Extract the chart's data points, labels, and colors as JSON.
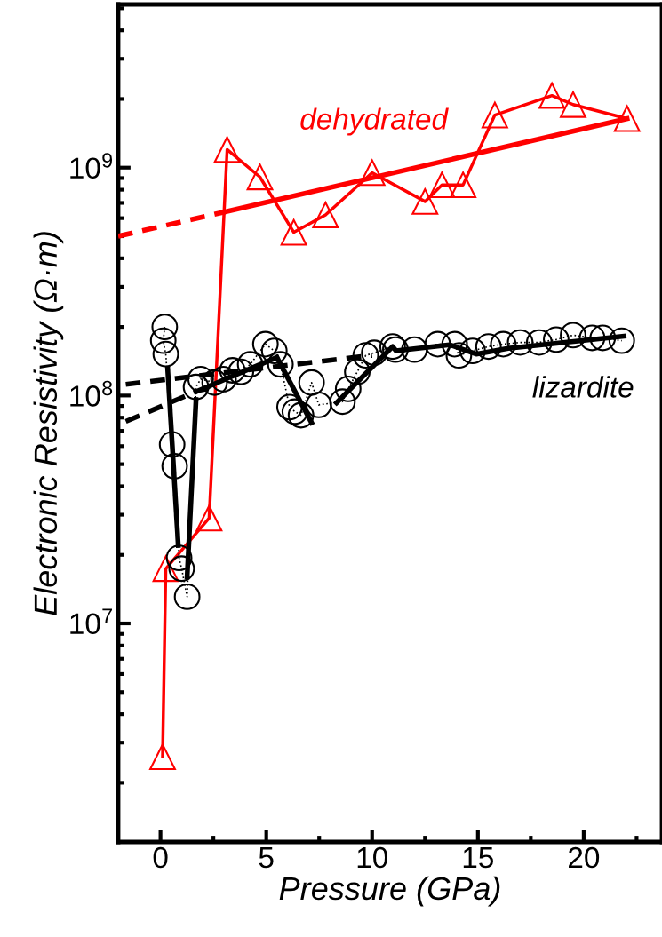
{
  "chart_data": {
    "type": "line",
    "xlabel": "Pressure (GPa)",
    "ylabel": "Electronic Resistivity (Ω·m)",
    "log": "y",
    "grid": false,
    "xlim": [
      -2,
      23.7
    ],
    "xticks": [
      0,
      5,
      10,
      15,
      20
    ],
    "ylim": [
      1100000,
      5200000000
    ],
    "yticks": [
      {
        "value": 10000000,
        "label": "10$^{7}$"
      },
      {
        "value": 100000000,
        "label": "10$^{8}$"
      },
      {
        "value": 1000000000,
        "label": "10$^{9}$"
      }
    ],
    "series": [
      {
        "name": "dehydrated",
        "color": "#ff0000",
        "marker": "triangle",
        "line_style": "solid",
        "x": [
          0.1,
          0.25,
          2.3,
          3.15,
          4.7,
          6.3,
          7.8,
          10.0,
          12.5,
          13.3,
          14.3,
          15.8,
          18.5,
          19.5,
          22.05
        ],
        "values": [
          2600000,
          17400000,
          29000000,
          1200000000,
          910000000,
          520000000,
          620000000,
          950000000,
          710000000,
          840000000,
          840000000,
          1700000000,
          2070000000,
          1890000000,
          1640000000
        ]
      },
      {
        "name": "lizardite",
        "color": "#000000",
        "marker": "circle",
        "line_style": "dotted",
        "x": [
          0.2,
          0.13,
          0.25,
          0.55,
          0.67,
          0.88,
          1.0,
          1.26,
          1.68,
          1.9,
          2.56,
          2.98,
          3.4,
          3.8,
          4.24,
          4.96,
          5.38,
          5.67,
          6.1,
          6.35,
          6.64,
          7.14,
          7.48,
          8.6,
          8.87,
          9.3,
          9.7,
          10.1,
          10.97,
          11.1,
          12.0,
          13.1,
          13.9,
          14.1,
          14.75,
          15.5,
          16.2,
          17.0,
          17.9,
          18.7,
          19.5,
          20.4,
          20.9,
          21.8
        ],
        "values": [
          200000000,
          174000000,
          152000000,
          61000000,
          49000000,
          19400000,
          17400000,
          13100000,
          109000000,
          118000000,
          114000000,
          118000000,
          129000000,
          127000000,
          137000000,
          168000000,
          157000000,
          137000000,
          89000000,
          85000000,
          82000000,
          114000000,
          91000000,
          94000000,
          107000000,
          127000000,
          150000000,
          154000000,
          164000000,
          159000000,
          159000000,
          168000000,
          168000000,
          150000000,
          157000000,
          164000000,
          168000000,
          171000000,
          171000000,
          176000000,
          184000000,
          179000000,
          179000000,
          174000000
        ]
      },
      {
        "color": "#ff0000",
        "line_style": "dashed",
        "x": [
          -2,
          3.07
        ],
        "values": [
          500000000,
          640000000
        ]
      },
      {
        "color": "#ff0000",
        "line_style": "solid",
        "x": [
          3.07,
          22.05
        ],
        "values": [
          640000000,
          1640000000
        ]
      },
      {
        "color": "#000000",
        "line_style": "solid",
        "x": [
          0.34,
          0.84
        ],
        "values": [
          131000000,
          22000000
        ]
      },
      {
        "color": "#000000",
        "line_style": "solid",
        "x": [
          1.26,
          1.68
        ],
        "values": [
          16000000,
          96000000
        ]
      },
      {
        "color": "#000000",
        "line_style": "solid",
        "x": [
          1.68,
          5.5
        ],
        "values": [
          104000000,
          147000000
        ]
      },
      {
        "color": "#000000",
        "line_style": "solid",
        "x": [
          5.5,
          7.14
        ],
        "values": [
          147000000,
          76000000
        ]
      },
      {
        "color": "#000000",
        "line_style": "solid",
        "x": [
          8.32,
          10.97,
          11.13,
          13.66,
          14.92,
          16.43,
          21.9
        ],
        "values": [
          93000000,
          164000000,
          157000000,
          167000000,
          152000000,
          161000000,
          182000000
        ]
      },
      {
        "color": "#000000",
        "line_style": "dashed",
        "x": [
          -1.64,
          10.0
        ],
        "values": [
          112000000,
          150000000
        ]
      },
      {
        "color": "#000000",
        "line_style": "dashed",
        "x": [
          -1.64,
          1.68
        ],
        "values": [
          77000000,
          104000000
        ]
      }
    ]
  }
}
